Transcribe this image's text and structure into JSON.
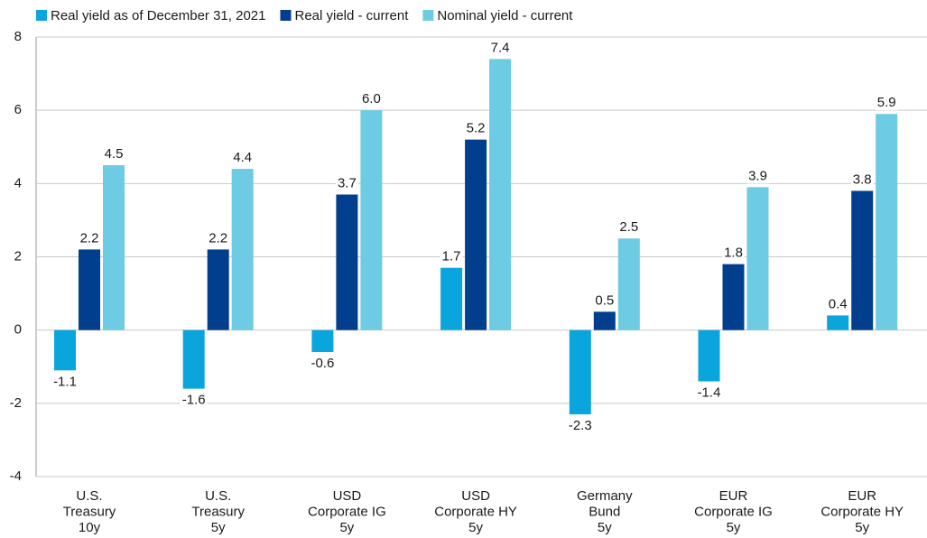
{
  "chart_data": {
    "type": "bar",
    "categories": [
      [
        "U.S.",
        "Treasury",
        "10y"
      ],
      [
        "U.S.",
        "Treasury",
        "5y"
      ],
      [
        "USD",
        "Corporate IG",
        "5y"
      ],
      [
        "USD",
        "Corporate HY",
        "5y"
      ],
      [
        "Germany",
        "Bund",
        "5y"
      ],
      [
        "EUR",
        "Corporate IG",
        "5y"
      ],
      [
        "EUR",
        "Corporate HY",
        "5y"
      ]
    ],
    "series": [
      {
        "name": "Real yield as of December 31, 2021",
        "color": "#0ba5de",
        "values": [
          -1.1,
          -1.6,
          -0.6,
          1.7,
          -2.3,
          -1.4,
          0.4
        ],
        "value_labels": [
          "-1.1",
          "-1.6",
          "-0.6",
          "1.7",
          "-2.3",
          "-1.4",
          "0.4"
        ]
      },
      {
        "name": "Real yield - current",
        "color": "#023e8e",
        "values": [
          2.2,
          2.2,
          3.7,
          5.2,
          0.5,
          1.8,
          3.8
        ],
        "value_labels": [
          "2.2",
          "2.2",
          "3.7",
          "5.2",
          "0.5",
          "1.8",
          "3.8"
        ]
      },
      {
        "name": "Nominal yield - current",
        "color": "#6dcbe3",
        "values": [
          4.5,
          4.4,
          6.0,
          7.4,
          2.5,
          3.9,
          5.9
        ],
        "value_labels": [
          "4.5",
          "4.4",
          "6.0",
          "7.4",
          "2.5",
          "3.9",
          "5.9"
        ]
      }
    ],
    "ylim": [
      -4,
      8
    ],
    "yticks": [
      -4,
      -2,
      0,
      2,
      4,
      6,
      8
    ],
    "grid": true,
    "legend": "top"
  }
}
